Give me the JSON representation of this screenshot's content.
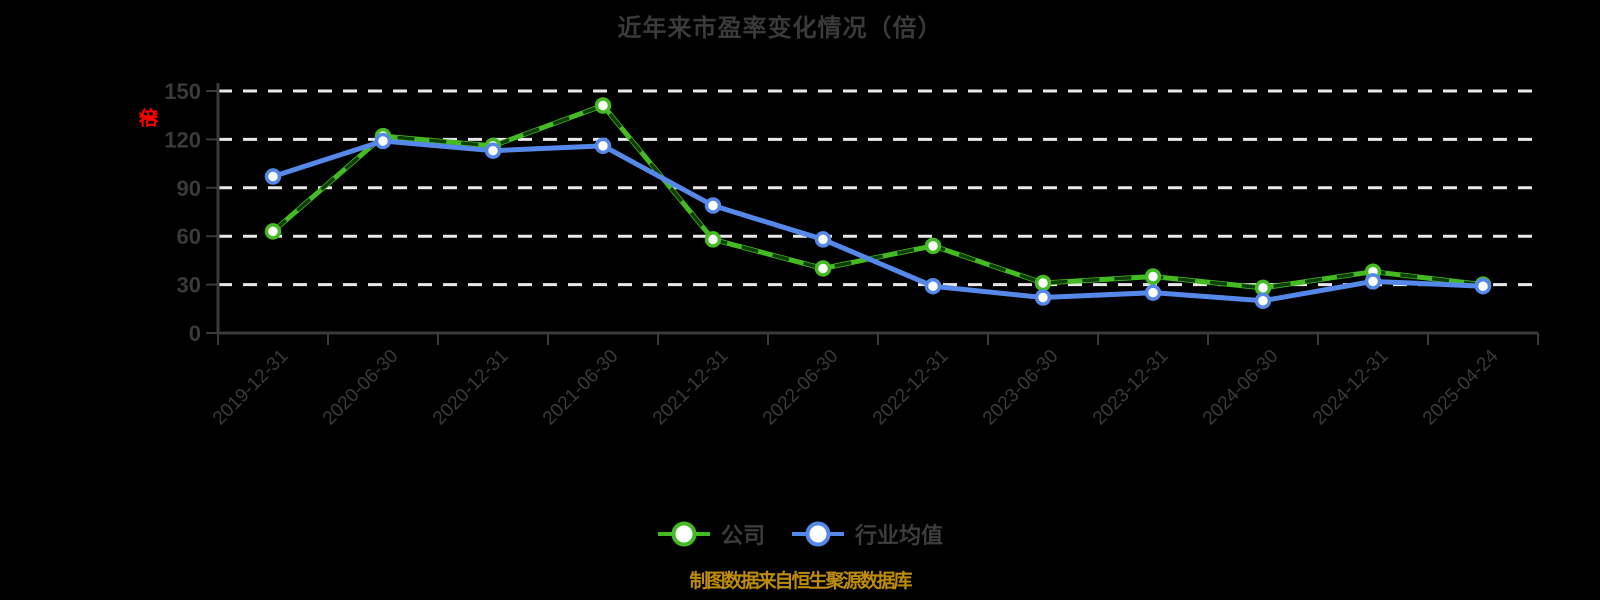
{
  "title": "近年来市盈率变化情况（倍）",
  "y_axis_unit_label": "（倍）",
  "footer": "制图数据来自恒生聚源数据库",
  "legend": {
    "items": [
      {
        "label": "公司",
        "color": "#44BB22"
      },
      {
        "label": "行业均值",
        "color": "#5588E8"
      }
    ]
  },
  "colors": {
    "background": "#000000",
    "company_line": "#44BB22",
    "company_overlay_dash": "#0E3D05",
    "industry_line": "#5588E8",
    "marker_fill": "#FFFFFF",
    "axis": "#3A3A3A",
    "text": "#3A3A3A",
    "gridline": "#E8E8E8",
    "y_unit_label": "#FF0000",
    "footer_text": "#BE8C0A"
  },
  "chart_data": {
    "type": "line",
    "title": "近年来市盈率变化情况（倍）",
    "categories": [
      "2019-12-31",
      "2020-06-30",
      "2020-12-31",
      "2021-06-30",
      "2021-12-31",
      "2022-06-30",
      "2022-12-31",
      "2023-06-30",
      "2023-12-31",
      "2024-06-30",
      "2024-12-31",
      "2025-04-24"
    ],
    "series": [
      {
        "name": "公司",
        "color": "#44BB22",
        "style": "solid-with-dark-dash-overlay",
        "values": [
          63,
          122,
          116,
          141,
          58,
          40,
          54,
          31,
          35,
          28,
          38,
          30
        ]
      },
      {
        "name": "行业均值",
        "color": "#5588E8",
        "style": "solid",
        "values": [
          97,
          119,
          113,
          116,
          79,
          58,
          29,
          22,
          25,
          20,
          32,
          29
        ]
      }
    ],
    "xlabel": "",
    "ylabel": "（倍）",
    "ylim": [
      0,
      150
    ],
    "yticks": [
      0,
      30,
      60,
      90,
      120,
      150
    ],
    "grid": "horizontal-dashed",
    "x_label_rotation": 45,
    "legend_position": "bottom"
  }
}
